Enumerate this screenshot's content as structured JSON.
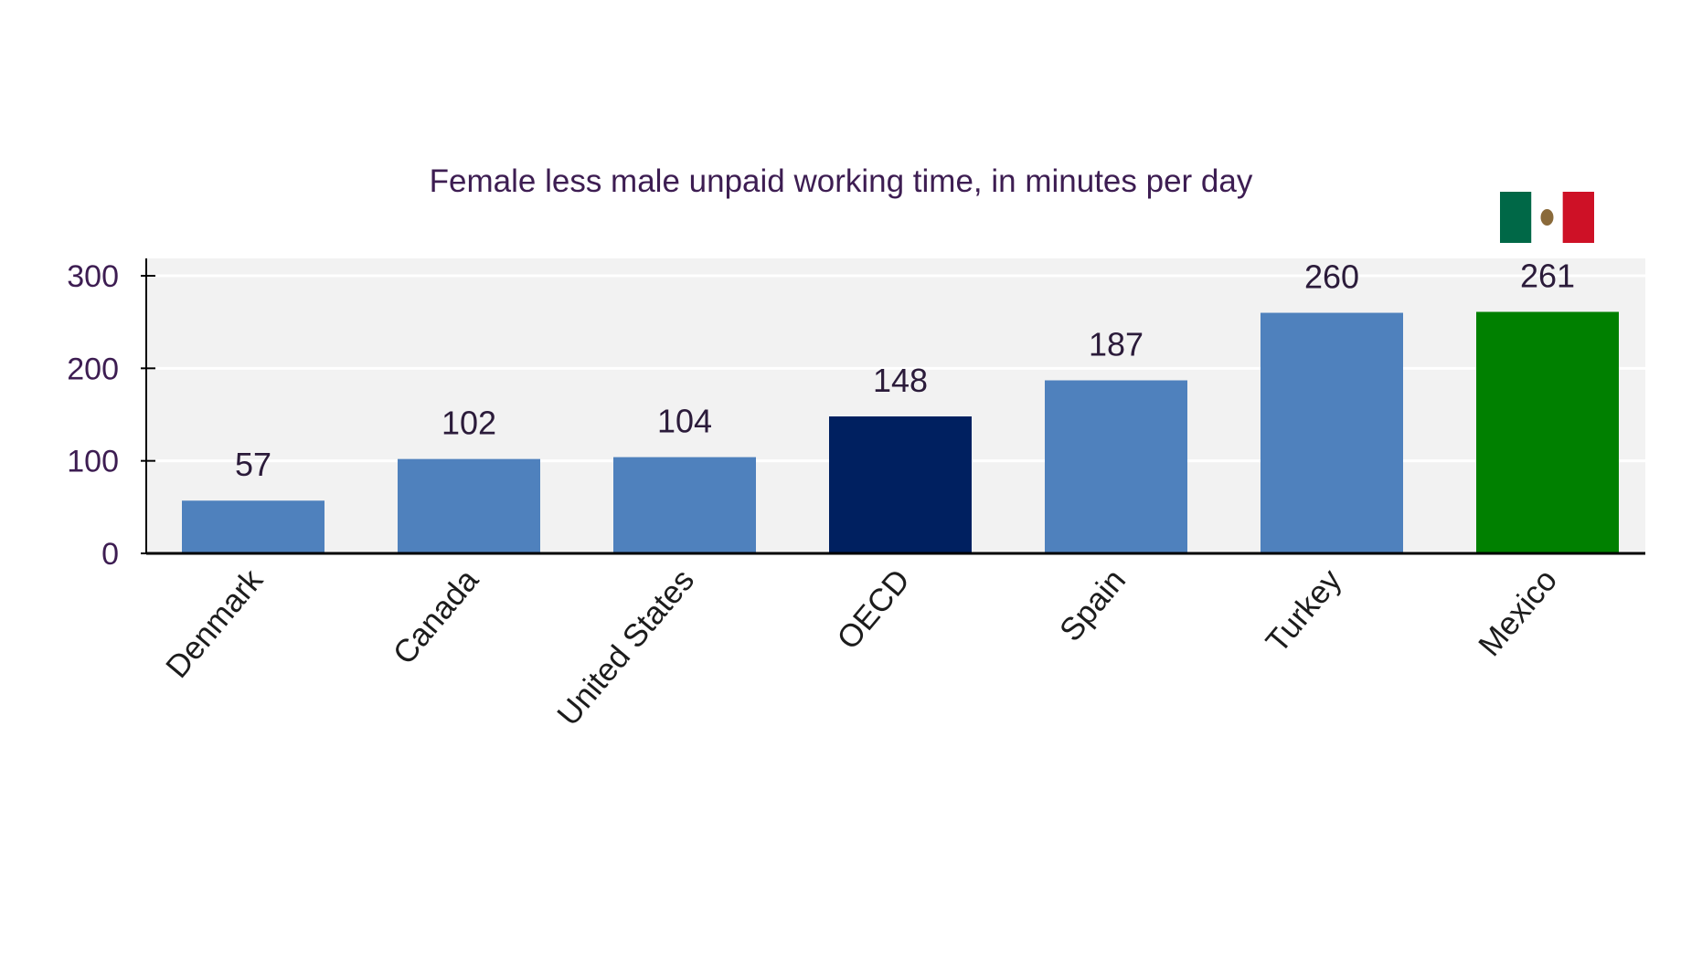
{
  "chart_data": {
    "type": "bar",
    "title": "Female less male unpaid working time, in minutes per day",
    "xlabel": "",
    "ylabel": "",
    "categories": [
      "Denmark",
      "Canada",
      "United States",
      "OECD",
      "Spain",
      "Turkey",
      "Mexico"
    ],
    "values": [
      57,
      102,
      104,
      148,
      187,
      260,
      261
    ],
    "data_labels": [
      "57",
      "102",
      "104",
      "148",
      "187",
      "260",
      "261"
    ],
    "bar_colors": [
      "#4f81bd",
      "#4f81bd",
      "#4f81bd",
      "#002060",
      "#4f81bd",
      "#4f81bd",
      "#008000"
    ],
    "ylim": [
      0,
      300
    ],
    "yticks": [
      0,
      100,
      200,
      300
    ],
    "ytick_labels": [
      "0",
      "100",
      "200",
      "300"
    ],
    "grid": true,
    "legend": "none",
    "plot_background": "#f2f2f2",
    "highlight": "Mexico",
    "flag_icon": "mexico-flag-icon",
    "flag_colors": [
      "#006847",
      "#ffffff",
      "#ce1126"
    ]
  }
}
